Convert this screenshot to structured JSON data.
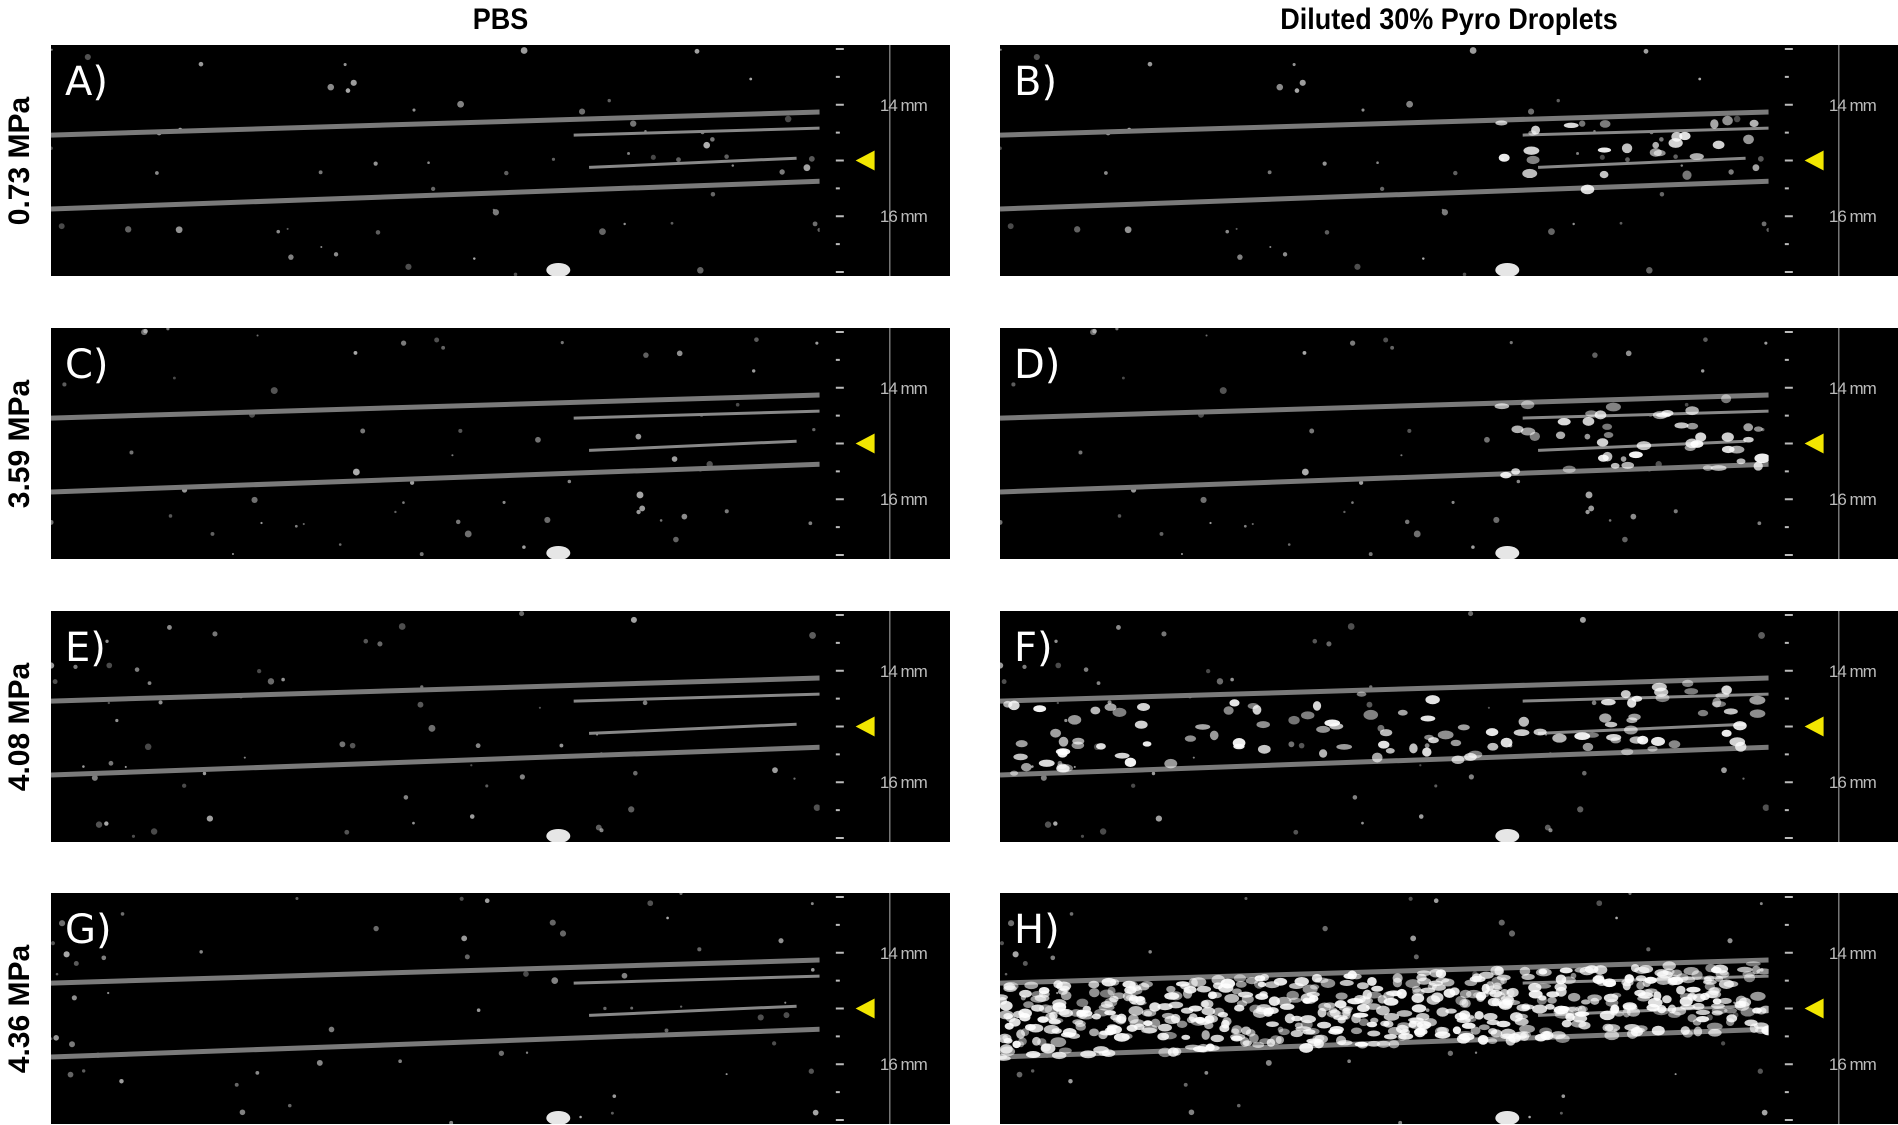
{
  "columns": [
    "PBS",
    "Diluted 30% Pyro Droplets"
  ],
  "rows": [
    "0.73 MPa",
    "3.59 MPa",
    "4.08 MPa",
    "4.36 MPa"
  ],
  "panels": [
    {
      "label": "A)",
      "row": 0,
      "col": 0
    },
    {
      "label": "B)",
      "row": 0,
      "col": 1
    },
    {
      "label": "C)",
      "row": 1,
      "col": 0
    },
    {
      "label": "D)",
      "row": 1,
      "col": 1
    },
    {
      "label": "E)",
      "row": 2,
      "col": 0
    },
    {
      "label": "F)",
      "row": 2,
      "col": 1
    },
    {
      "label": "G)",
      "row": 3,
      "col": 0
    },
    {
      "label": "H)",
      "row": 3,
      "col": 1
    }
  ],
  "depth_scale": {
    "upper_label": "14 mm",
    "lower_label": "16 mm"
  },
  "colors": {
    "focus_marker": "#f2e600",
    "background": "#000000",
    "tube_wall": "#7a7a7a"
  },
  "icons": {
    "focus_marker": "yellow-triangle-icon"
  }
}
